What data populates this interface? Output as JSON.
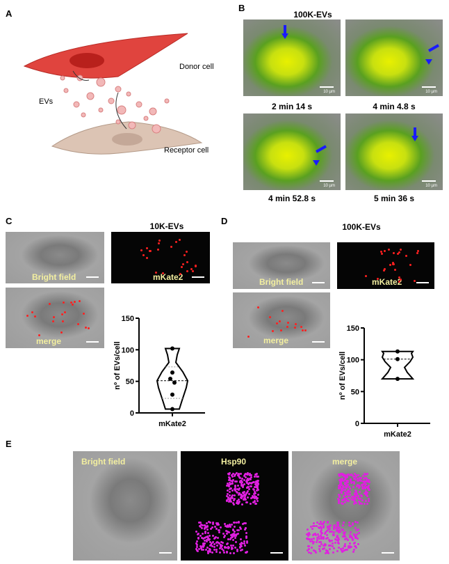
{
  "panelA": {
    "label": "A",
    "donor": "Donor cell",
    "evs": "EVs",
    "receptor": "Receptor cell"
  },
  "panelB": {
    "label": "B",
    "title": "100K-EVs",
    "scale": "10 µm",
    "frames": [
      "2 min 14 s",
      "4 min 4.8 s",
      "4 min 52.8 s",
      "5 min 36 s"
    ]
  },
  "panelC": {
    "label": "C",
    "title": "10K-EVs",
    "bf": "Bright field",
    "mk": "mKate2",
    "merge": "merge"
  },
  "panelD": {
    "label": "D",
    "title": "100K-EVs",
    "bf": "Bright field",
    "mk": "mKate2",
    "merge": "merge"
  },
  "panelE": {
    "label": "E",
    "bf": "Bright field",
    "hsp": "Hsp90",
    "merge": "merge"
  },
  "chart_data": [
    {
      "type": "violin",
      "panel": "C",
      "ylabel": "nº of EVs/cell",
      "categories": [
        "mKate2"
      ],
      "ylim": [
        0,
        150
      ],
      "yticks": [
        0,
        50,
        100,
        150
      ],
      "points": [
        102,
        64,
        54,
        48,
        29,
        6
      ],
      "median": 51,
      "quartiles": [
        23,
        73
      ]
    },
    {
      "type": "violin",
      "panel": "D",
      "ylabel": "nº of EVs/cell",
      "categories": [
        "mKate2"
      ],
      "ylim": [
        0,
        150
      ],
      "yticks": [
        0,
        50,
        100,
        150
      ],
      "points": [
        113,
        101,
        70
      ],
      "median": 101
    }
  ],
  "colors": {
    "arrow": "#1a1aff",
    "mkate": "#ff2020",
    "hsp90": "#e020e0",
    "overlay_text": "#f3efa0"
  }
}
